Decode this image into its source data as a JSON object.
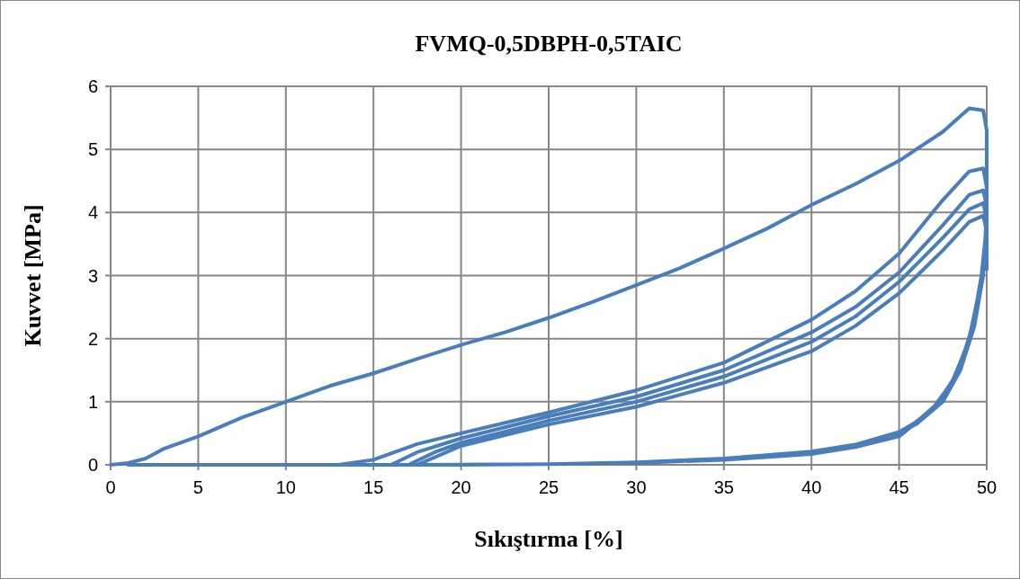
{
  "chart_data": {
    "type": "line",
    "title": "FVMQ-0,5DBPH-0,5TAIC",
    "xlabel": "Sıkıştırma [%]",
    "ylabel": "Kuvvet [MPa]",
    "xlim": [
      0,
      50
    ],
    "xticks": [
      0,
      5,
      10,
      15,
      20,
      25,
      30,
      35,
      40,
      45,
      50
    ],
    "ylim": [
      0,
      6
    ],
    "yticks": [
      0,
      1,
      2,
      3,
      4,
      5,
      6
    ],
    "grid": true,
    "series": [
      {
        "color": "#4a7ebb",
        "x": [
          0,
          1,
          2,
          3,
          5,
          7.5,
          10,
          12.5,
          15,
          17.5,
          20,
          22.5,
          25,
          27.5,
          30,
          32.5,
          35,
          37.5,
          40,
          42.5,
          45,
          47.5,
          49,
          49.8,
          50,
          50,
          50,
          49.8,
          49.3,
          48.5,
          47.5,
          46,
          45,
          42.5,
          40,
          35,
          30,
          25,
          20,
          15,
          10,
          5,
          2,
          1,
          13,
          15,
          17.5,
          20,
          25,
          30,
          35,
          40,
          42.5,
          45,
          47.5,
          49,
          49.8,
          50,
          50,
          49.7,
          49.2,
          48.4,
          47.3,
          46,
          45,
          42.5,
          40,
          35,
          30,
          25,
          20,
          16,
          17.5,
          20,
          25,
          30,
          35,
          40,
          42.5,
          45,
          47.5,
          49,
          49.8,
          50,
          50,
          49.6,
          49,
          48.2,
          47,
          45,
          42.5,
          40,
          35,
          30,
          25,
          17,
          18.5,
          20,
          25,
          30,
          35,
          40,
          42.5,
          45,
          47.5,
          49,
          49.8,
          50,
          50,
          49.5,
          48.9,
          48,
          46.8,
          45,
          42.5,
          40,
          35,
          30,
          25,
          17.5,
          20,
          25,
          30,
          35,
          40,
          42.5,
          45,
          47.5,
          49,
          49.8,
          50,
          50
        ],
        "values": [
          0,
          0.03,
          0.1,
          0.25,
          0.45,
          0.75,
          1,
          1.25,
          1.45,
          1.68,
          1.9,
          2.1,
          2.33,
          2.58,
          2.85,
          3.12,
          3.43,
          3.75,
          4.12,
          4.45,
          4.82,
          5.28,
          5.65,
          5.62,
          5.3,
          4.6,
          4,
          3,
          2.2,
          1.5,
          1,
          0.65,
          0.5,
          0.3,
          0.2,
          0.09,
          0.03,
          0.01,
          0,
          0,
          0,
          0,
          0,
          0,
          0,
          0.08,
          0.33,
          0.5,
          0.83,
          1.18,
          1.62,
          2.3,
          2.75,
          3.35,
          4.2,
          4.65,
          4.7,
          4.4,
          3.8,
          3,
          2.2,
          1.5,
          1,
          0.68,
          0.52,
          0.32,
          0.21,
          0.1,
          0.04,
          0.01,
          0,
          0,
          0.2,
          0.42,
          0.77,
          1.08,
          1.5,
          2.1,
          2.5,
          3.05,
          3.8,
          4.28,
          4.35,
          4.1,
          3.6,
          2.8,
          2,
          1.4,
          0.9,
          0.48,
          0.3,
          0.19,
          0.09,
          0.03,
          0.01,
          0,
          0.2,
          0.35,
          0.7,
          1,
          1.4,
          1.95,
          2.35,
          2.9,
          3.6,
          4.05,
          4.15,
          3.9,
          3.4,
          2.6,
          1.9,
          1.3,
          0.85,
          0.45,
          0.28,
          0.17,
          0.08,
          0.03,
          0.01,
          0,
          0.3,
          0.64,
          0.92,
          1.3,
          1.8,
          2.2,
          2.72,
          3.4,
          3.85,
          3.95,
          3.7,
          3.1
        ]
      }
    ]
  }
}
